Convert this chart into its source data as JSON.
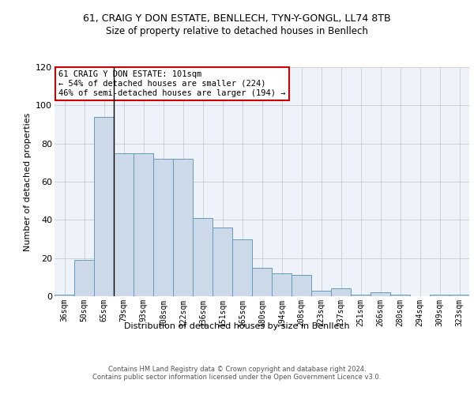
{
  "title": "61, CRAIG Y DON ESTATE, BENLLECH, TYN-Y-GONGL, LL74 8TB",
  "subtitle": "Size of property relative to detached houses in Benllech",
  "xlabel": "Distribution of detached houses by size in Benllech",
  "ylabel": "Number of detached properties",
  "categories": [
    "36sqm",
    "50sqm",
    "65sqm",
    "79sqm",
    "93sqm",
    "108sqm",
    "122sqm",
    "136sqm",
    "151sqm",
    "165sqm",
    "180sqm",
    "194sqm",
    "208sqm",
    "223sqm",
    "237sqm",
    "251sqm",
    "266sqm",
    "280sqm",
    "294sqm",
    "309sqm",
    "323sqm"
  ],
  "bar_values": [
    1,
    19,
    94,
    75,
    75,
    72,
    72,
    41,
    36,
    30,
    15,
    12,
    11,
    3,
    4,
    1,
    2,
    1,
    0,
    1,
    1
  ],
  "bar_color": "#ccd9e8",
  "bar_edge_color": "#6699bb",
  "bg_color": "#eef2fb",
  "annotation_text": "61 CRAIG Y DON ESTATE: 101sqm\n← 54% of detached houses are smaller (224)\n46% of semi-detached houses are larger (194) →",
  "annotation_box_color": "#ffffff",
  "annotation_box_edge": "#cc0000",
  "vline_x_index": 3.0,
  "ylim": [
    0,
    120
  ],
  "yticks": [
    0,
    20,
    40,
    60,
    80,
    100,
    120
  ],
  "footer": "Contains HM Land Registry data © Crown copyright and database right 2024.\nContains public sector information licensed under the Open Government Licence v3.0.",
  "grid_color": "#cccccc",
  "title_fontsize": 9,
  "subtitle_fontsize": 8.5,
  "xlabel_fontsize": 8,
  "ylabel_fontsize": 8,
  "tick_fontsize": 7,
  "footer_fontsize": 6,
  "annotation_fontsize": 7.5
}
